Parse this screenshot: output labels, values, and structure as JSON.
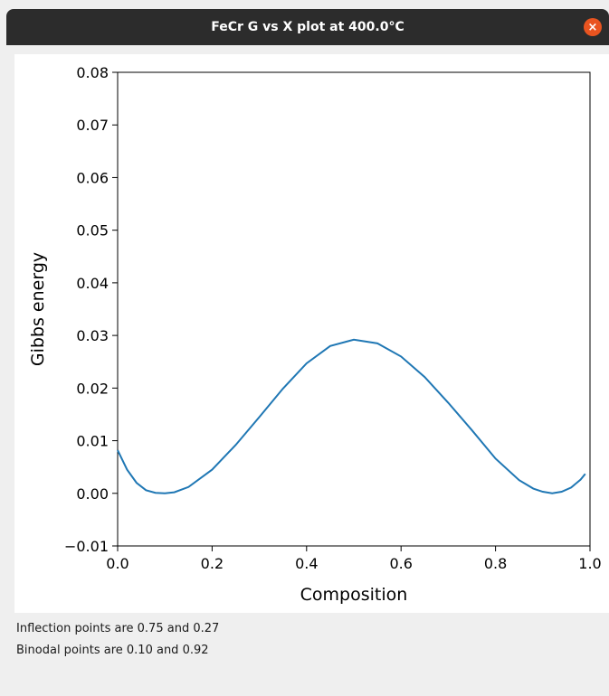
{
  "window": {
    "title": "FeCr G vs X plot at 400.0°C",
    "close_symbol": "×",
    "close_icon": "close-icon",
    "accent_color": "#e95420"
  },
  "chart_data": {
    "type": "line",
    "title": "",
    "xlabel": "Composition",
    "ylabel": "Gibbs energy",
    "xlim": [
      0.0,
      1.0
    ],
    "ylim": [
      -0.01,
      0.08
    ],
    "x_ticks": [
      "0.0",
      "0.2",
      "0.4",
      "0.6",
      "0.8",
      "1.0"
    ],
    "y_ticks": [
      "−0.01",
      "0.00",
      "0.01",
      "0.02",
      "0.03",
      "0.04",
      "0.05",
      "0.06",
      "0.07",
      "0.08"
    ],
    "grid": false,
    "series": [
      {
        "color": "#1f77b4",
        "x": [
          0.0,
          0.02,
          0.04,
          0.06,
          0.08,
          0.1,
          0.12,
          0.15,
          0.2,
          0.25,
          0.3,
          0.35,
          0.4,
          0.45,
          0.5,
          0.55,
          0.6,
          0.65,
          0.7,
          0.75,
          0.8,
          0.85,
          0.88,
          0.9,
          0.92,
          0.94,
          0.96,
          0.98,
          0.99
        ],
        "y": [
          0.0082,
          0.0045,
          0.002,
          0.0006,
          0.0001,
          0.0,
          0.0002,
          0.0012,
          0.0045,
          0.0092,
          0.0145,
          0.0199,
          0.0247,
          0.028,
          0.0292,
          0.0285,
          0.026,
          0.0221,
          0.0172,
          0.012,
          0.0066,
          0.0025,
          0.0009,
          0.0003,
          0.0,
          0.0003,
          0.0011,
          0.0026,
          0.0037
        ]
      }
    ]
  },
  "info": {
    "inflection": "Inflection points are 0.75 and 0.27",
    "binodal": "Binodal points are 0.10 and 0.92"
  }
}
